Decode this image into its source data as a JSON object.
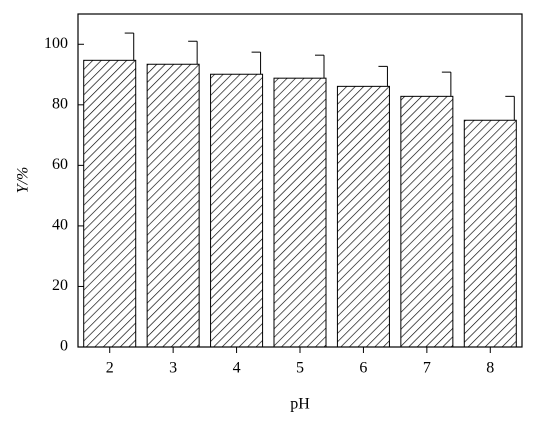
{
  "chart_data": {
    "type": "bar",
    "x_label": "pH",
    "y_label": "Y/%",
    "categories": [
      "2",
      "3",
      "4",
      "5",
      "6",
      "7",
      "8"
    ],
    "values": [
      94.7,
      93.4,
      90.1,
      88.8,
      86.1,
      82.8,
      74.9
    ],
    "errors": [
      9,
      7.6,
      7.3,
      7.6,
      6.6,
      8,
      7.9
    ],
    "color": "#000000",
    "hatch": true,
    "ylim": [
      0,
      110
    ],
    "yticks": [
      0,
      20,
      40,
      60,
      80,
      100
    ]
  }
}
